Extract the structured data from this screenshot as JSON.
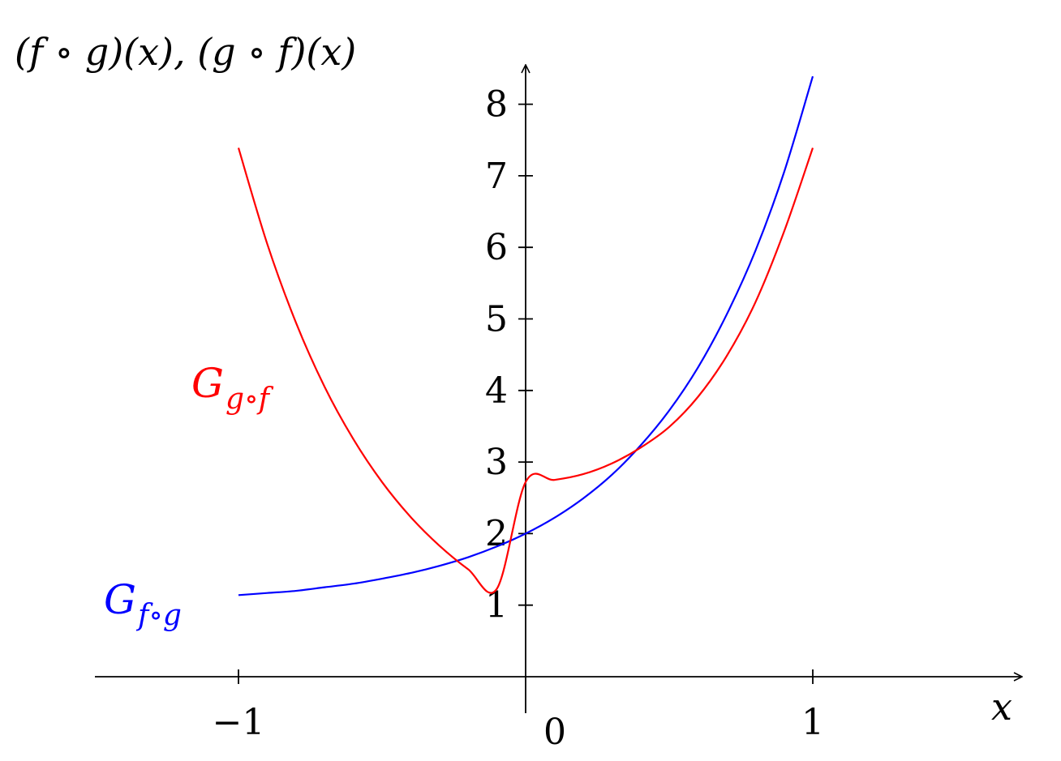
{
  "chart_data": {
    "type": "line",
    "ylabel": "(f ∘ g)(x), (g ∘ f)(x)",
    "xlabel": "x",
    "xlim": [
      -1.5,
      1.75
    ],
    "ylim": [
      -1.0,
      8.6
    ],
    "x_ticks": [
      {
        "value": -1,
        "label": "−1"
      },
      {
        "value": 0,
        "label": "0"
      },
      {
        "value": 1,
        "label": "1"
      }
    ],
    "y_ticks": [
      {
        "value": 1,
        "label": "1"
      },
      {
        "value": 2,
        "label": "2"
      },
      {
        "value": 3,
        "label": "3"
      },
      {
        "value": 4,
        "label": "4"
      },
      {
        "value": 5,
        "label": "5"
      },
      {
        "value": 6,
        "label": "6"
      },
      {
        "value": 7,
        "label": "7"
      },
      {
        "value": 8,
        "label": "8"
      }
    ],
    "series": [
      {
        "name": "G_{f∘g}",
        "name_main": "G",
        "name_sub": "f∘g",
        "color": "#0000ff",
        "x": [
          -1.0,
          -0.9,
          -0.8,
          -0.7,
          -0.6,
          -0.5,
          -0.4,
          -0.3,
          -0.2,
          -0.1,
          0.0,
          0.1,
          0.2,
          0.3,
          0.4,
          0.5,
          0.6,
          0.7,
          0.8,
          0.9,
          1.0
        ],
        "y": [
          1.14,
          1.17,
          1.2,
          1.25,
          1.3,
          1.37,
          1.45,
          1.55,
          1.67,
          1.82,
          2.0,
          2.22,
          2.49,
          2.82,
          3.23,
          3.72,
          4.32,
          5.06,
          5.95,
          7.05,
          8.39
        ]
      },
      {
        "name": "G_{g∘f}",
        "name_main": "G",
        "name_sub": "g∘f",
        "color": "#ff0000",
        "x": [
          -1.0,
          -0.9,
          -0.8,
          -0.7,
          -0.6,
          -0.5,
          -0.4,
          -0.3,
          -0.2,
          -0.1,
          0.0,
          0.1,
          0.2,
          0.3,
          0.4,
          0.5,
          0.6,
          0.7,
          0.8,
          0.9,
          1.0
        ],
        "y": [
          7.39,
          6.05,
          4.95,
          4.05,
          3.32,
          2.72,
          2.23,
          1.83,
          1.5,
          1.23,
          2.72,
          2.75,
          2.83,
          2.98,
          3.2,
          3.49,
          3.91,
          4.48,
          5.23,
          6.22,
          7.39
        ]
      }
    ],
    "axis_color": "#000000",
    "grid": false
  }
}
